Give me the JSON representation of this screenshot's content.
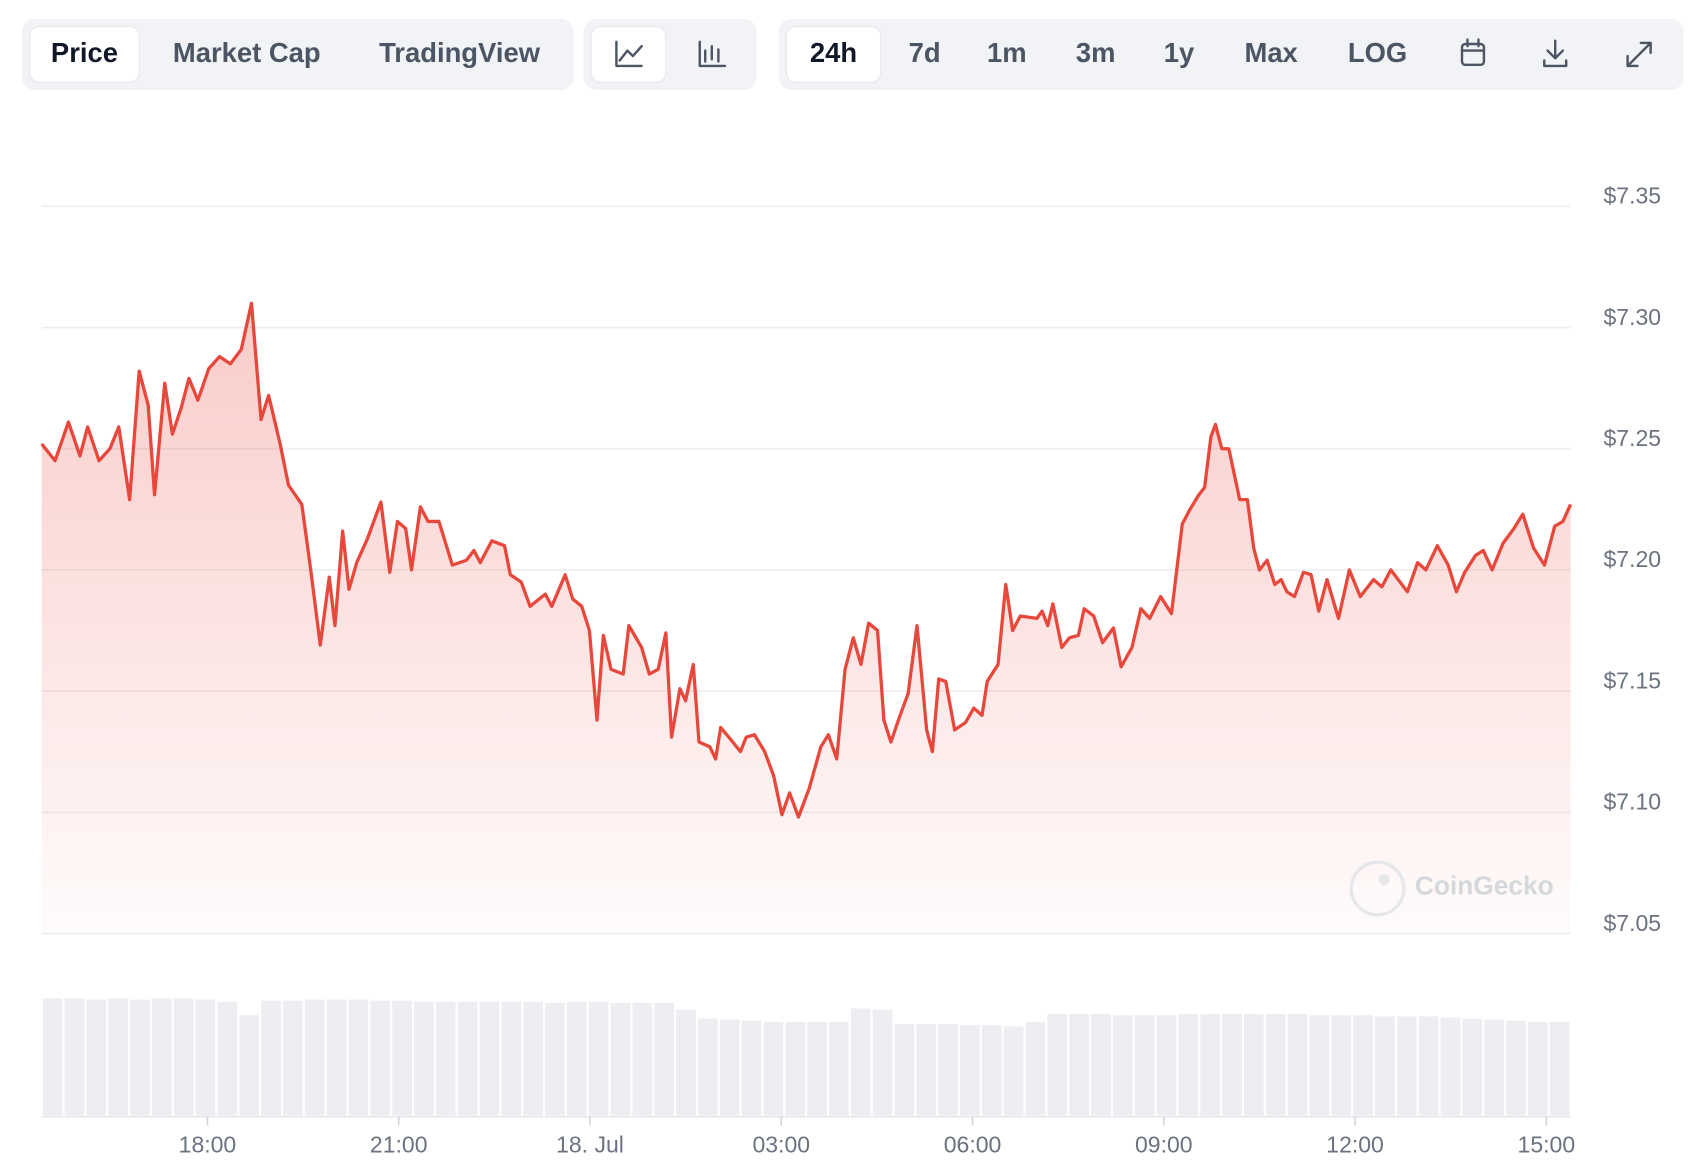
{
  "toolbar": {
    "tabs": [
      "Price",
      "Market Cap",
      "TradingView"
    ],
    "ranges": [
      "24h",
      "7d",
      "1m",
      "3m",
      "1y",
      "Max",
      "LOG"
    ]
  },
  "watermark": "CoinGecko",
  "chart_data": {
    "type": "line",
    "series": [
      {
        "name": "Price",
        "color": "#e8473c",
        "x": [
          15.4,
          15.61,
          15.82,
          16.0,
          16.12,
          16.3,
          16.47,
          16.61,
          16.78,
          16.93,
          17.07,
          17.17,
          17.33,
          17.45,
          17.59,
          17.71,
          17.85,
          18.02,
          18.19,
          18.36,
          18.53,
          18.69,
          18.84,
          18.96,
          19.14,
          19.27,
          19.48,
          19.62,
          19.77,
          19.91,
          20.0,
          20.12,
          20.22,
          20.34,
          20.51,
          20.72,
          20.86,
          20.98,
          21.11,
          21.2,
          21.34,
          21.46,
          21.63,
          21.84,
          22.06,
          22.18,
          22.28,
          22.46,
          22.66,
          22.75,
          22.92,
          23.06,
          23.3,
          23.4,
          23.61,
          23.73,
          23.87,
          23.99,
          24.11,
          24.21,
          24.33,
          24.52,
          24.61,
          24.81,
          24.93,
          25.07,
          25.19,
          25.28,
          25.41,
          25.5,
          25.62,
          25.71,
          25.88,
          25.97,
          26.05,
          26.24,
          26.36,
          26.45,
          26.58,
          26.74,
          26.88,
          27.01,
          27.13,
          27.27,
          27.44,
          27.62,
          27.74,
          27.87,
          28.0,
          28.13,
          28.25,
          28.37,
          28.51,
          28.61,
          28.72,
          28.85,
          28.99,
          29.13,
          29.28,
          29.37,
          29.47,
          29.58,
          29.72,
          29.89,
          30.02,
          30.15,
          30.23,
          30.4,
          30.52,
          30.63,
          30.75,
          31.01,
          31.09,
          31.18,
          31.26,
          31.4,
          31.52,
          31.66,
          31.75,
          31.9,
          32.04,
          32.21,
          32.33,
          32.5,
          32.64,
          32.78,
          32.95,
          33.12,
          33.29,
          33.41,
          33.55,
          33.64,
          33.74,
          33.81,
          33.91,
          34.02,
          34.19,
          34.31,
          34.41,
          34.5,
          34.62,
          34.74,
          34.84,
          34.93,
          35.05,
          35.19,
          35.31,
          35.43,
          35.56,
          35.74,
          35.91,
          36.08,
          36.29,
          36.42,
          36.56,
          36.82,
          36.98,
          37.11,
          37.29,
          37.46,
          37.59,
          37.72,
          37.89,
          38.01,
          38.15,
          38.32,
          38.49,
          38.63,
          38.8,
          38.97,
          39.13,
          39.26,
          39.38
        ],
        "values": [
          7.252,
          7.245,
          7.261,
          7.247,
          7.259,
          7.245,
          7.25,
          7.259,
          7.229,
          7.282,
          7.268,
          7.231,
          7.277,
          7.256,
          7.267,
          7.279,
          7.27,
          7.283,
          7.288,
          7.285,
          7.291,
          7.31,
          7.262,
          7.272,
          7.252,
          7.235,
          7.227,
          7.2,
          7.169,
          7.197,
          7.177,
          7.216,
          7.192,
          7.203,
          7.213,
          7.228,
          7.199,
          7.22,
          7.217,
          7.2,
          7.226,
          7.22,
          7.22,
          7.202,
          7.204,
          7.208,
          7.203,
          7.212,
          7.21,
          7.198,
          7.195,
          7.185,
          7.19,
          7.185,
          7.198,
          7.188,
          7.185,
          7.175,
          7.138,
          7.173,
          7.159,
          7.157,
          7.177,
          7.168,
          7.157,
          7.159,
          7.174,
          7.131,
          7.151,
          7.146,
          7.161,
          7.129,
          7.127,
          7.122,
          7.135,
          7.129,
          7.125,
          7.131,
          7.132,
          7.125,
          7.115,
          7.099,
          7.108,
          7.098,
          7.11,
          7.127,
          7.132,
          7.122,
          7.159,
          7.172,
          7.161,
          7.178,
          7.175,
          7.138,
          7.129,
          7.139,
          7.149,
          7.177,
          7.134,
          7.125,
          7.155,
          7.154,
          7.134,
          7.137,
          7.143,
          7.14,
          7.154,
          7.161,
          7.194,
          7.175,
          7.181,
          7.18,
          7.183,
          7.177,
          7.186,
          7.168,
          7.172,
          7.173,
          7.184,
          7.181,
          7.17,
          7.176,
          7.16,
          7.168,
          7.184,
          7.18,
          7.189,
          7.182,
          7.219,
          7.225,
          7.231,
          7.234,
          7.255,
          7.26,
          7.25,
          7.25,
          7.229,
          7.229,
          7.209,
          7.2,
          7.204,
          7.194,
          7.196,
          7.191,
          7.189,
          7.199,
          7.198,
          7.183,
          7.196,
          7.18,
          7.2,
          7.189,
          7.196,
          7.193,
          7.2,
          7.191,
          7.203,
          7.2,
          7.21,
          7.202,
          7.191,
          7.199,
          7.206,
          7.208,
          7.2,
          7.211,
          7.217,
          7.223,
          7.209,
          7.202,
          7.218,
          7.22,
          7.227
        ]
      }
    ],
    "volume": {
      "color": "#eceef1",
      "ylim": [
        0,
        120
      ],
      "values": [
        105,
        105,
        104,
        105,
        104,
        105,
        105,
        104,
        102,
        90,
        103,
        103,
        104,
        104,
        104,
        103,
        103,
        102,
        102,
        102,
        102,
        102,
        102,
        101,
        102,
        102,
        101,
        101,
        101,
        95,
        87,
        86,
        85,
        84,
        84,
        84,
        84,
        96,
        95,
        82,
        82,
        82,
        81,
        81,
        80,
        84,
        91,
        91,
        91,
        90,
        90,
        90,
        91,
        91,
        91,
        91,
        91,
        91,
        90,
        90,
        90,
        89,
        89,
        89,
        88,
        87,
        86,
        85,
        84,
        84
      ]
    },
    "xlim": [
      15.4,
      39.38
    ],
    "xticks": [
      {
        "value": 18,
        "label": "18:00"
      },
      {
        "value": 21,
        "label": "21:00"
      },
      {
        "value": 24,
        "label": "18. Jul"
      },
      {
        "value": 27,
        "label": "03:00"
      },
      {
        "value": 30,
        "label": "06:00"
      },
      {
        "value": 33,
        "label": "09:00"
      },
      {
        "value": 36,
        "label": "12:00"
      },
      {
        "value": 39,
        "label": "15:00"
      }
    ],
    "ylim": [
      7.05,
      7.35
    ],
    "yticks": [
      {
        "value": 7.05,
        "label": "$7.05"
      },
      {
        "value": 7.1,
        "label": "$7.10"
      },
      {
        "value": 7.15,
        "label": "$7.15"
      },
      {
        "value": 7.2,
        "label": "$7.20"
      },
      {
        "value": 7.25,
        "label": "$7.25"
      },
      {
        "value": 7.3,
        "label": "$7.30"
      },
      {
        "value": 7.35,
        "label": "$7.35"
      }
    ],
    "grid": true
  }
}
